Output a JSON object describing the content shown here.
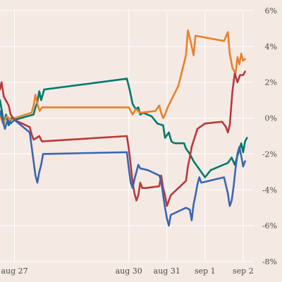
{
  "chart_data": {
    "type": "line",
    "title": "",
    "xlabel": "",
    "ylabel": "",
    "x_ticks": [
      {
        "day": 0,
        "label": "aug 27"
      },
      {
        "day": 3,
        "label": "aug 30"
      },
      {
        "day": 4,
        "label": "aug 31"
      },
      {
        "day": 5,
        "label": "sep 1"
      },
      {
        "day": 6,
        "label": "sep 2"
      }
    ],
    "xlim": [
      -0.38,
      6.28
    ],
    "ylim": [
      -8,
      6
    ],
    "y_ticks": [
      -8,
      -6,
      -4,
      -2,
      0,
      2,
      4,
      6
    ],
    "y_tick_labels": [
      "-8%",
      "-6%",
      "-4%",
      "-2%",
      "0%",
      "2%",
      "4%",
      "6%"
    ],
    "y_axis_side": "right",
    "grid": true,
    "legend": "none",
    "series": [
      {
        "color": "#00796b",
        "points": [
          [
            -0.38,
            1.0
          ],
          [
            -0.33,
            0.4
          ],
          [
            -0.28,
            -0.3
          ],
          [
            -0.22,
            0.2
          ],
          [
            -0.15,
            -0.4
          ],
          [
            -0.08,
            0.0
          ],
          [
            0.0,
            -0.1
          ],
          [
            0.5,
            0.2
          ],
          [
            0.55,
            0.6
          ],
          [
            0.6,
            0.9
          ],
          [
            0.65,
            1.5
          ],
          [
            0.7,
            1.0
          ],
          [
            0.78,
            1.6
          ],
          [
            2.95,
            2.2
          ],
          [
            3.02,
            1.6
          ],
          [
            3.1,
            0.8
          ],
          [
            3.18,
            0.5
          ],
          [
            3.25,
            0.6
          ],
          [
            3.3,
            0.2
          ],
          [
            3.38,
            0.3
          ],
          [
            3.6,
            0.1
          ],
          [
            3.75,
            -0.3
          ],
          [
            3.9,
            -0.4
          ],
          [
            3.95,
            -1.1
          ],
          [
            4.05,
            -0.8
          ],
          [
            4.12,
            -1.3
          ],
          [
            4.2,
            -1.4
          ],
          [
            4.45,
            -1.4
          ],
          [
            4.5,
            -1.7
          ],
          [
            4.6,
            -2.0
          ],
          [
            4.7,
            -2.4
          ],
          [
            4.8,
            -2.7
          ],
          [
            4.9,
            -3.0
          ],
          [
            5.0,
            -3.3
          ],
          [
            5.15,
            -2.9
          ],
          [
            5.6,
            -2.5
          ],
          [
            5.7,
            -2.2
          ],
          [
            5.78,
            -2.6
          ],
          [
            5.88,
            -1.9
          ],
          [
            5.95,
            -1.4
          ],
          [
            6.0,
            -1.9
          ],
          [
            6.05,
            -1.3
          ],
          [
            6.1,
            -1.1
          ]
        ]
      },
      {
        "color": "#e8822a",
        "points": [
          [
            -0.38,
            0.2
          ],
          [
            -0.3,
            -0.3
          ],
          [
            -0.2,
            0.1
          ],
          [
            -0.1,
            -0.1
          ],
          [
            0.0,
            0.0
          ],
          [
            0.45,
            0.3
          ],
          [
            0.5,
            0.7
          ],
          [
            0.55,
            1.3
          ],
          [
            0.6,
            0.8
          ],
          [
            0.66,
            0.4
          ],
          [
            0.72,
            0.6
          ],
          [
            3.0,
            0.6
          ],
          [
            3.1,
            0.2
          ],
          [
            3.18,
            0.5
          ],
          [
            3.3,
            0.3
          ],
          [
            3.7,
            0.4
          ],
          [
            3.8,
            0.7
          ],
          [
            3.85,
            0.3
          ],
          [
            3.9,
            0.0
          ],
          [
            3.95,
            0.2
          ],
          [
            4.02,
            0.6
          ],
          [
            4.3,
            1.8
          ],
          [
            4.5,
            3.5
          ],
          [
            4.55,
            4.9
          ],
          [
            4.62,
            4.3
          ],
          [
            4.7,
            3.5
          ],
          [
            4.75,
            4.6
          ],
          [
            5.5,
            4.3
          ],
          [
            5.6,
            4.8
          ],
          [
            5.65,
            3.6
          ],
          [
            5.72,
            2.8
          ],
          [
            5.8,
            2.5
          ],
          [
            5.85,
            3.4
          ],
          [
            5.9,
            3.0
          ],
          [
            5.95,
            3.6
          ],
          [
            6.0,
            3.2
          ],
          [
            6.05,
            3.3
          ]
        ]
      },
      {
        "color": "#b8393a",
        "points": [
          [
            -0.38,
            1.6
          ],
          [
            -0.34,
            2.0
          ],
          [
            -0.28,
            1.2
          ],
          [
            -0.2,
            0.9
          ],
          [
            -0.15,
            0.7
          ],
          [
            -0.1,
            0.2
          ],
          [
            0.0,
            -0.1
          ],
          [
            0.4,
            -0.5
          ],
          [
            0.45,
            -0.9
          ],
          [
            0.5,
            -1.2
          ],
          [
            0.58,
            -1.1
          ],
          [
            0.65,
            -1.0
          ],
          [
            0.72,
            -1.3
          ],
          [
            2.95,
            -1.0
          ],
          [
            3.0,
            -1.7
          ],
          [
            3.05,
            -2.6
          ],
          [
            3.1,
            -3.6
          ],
          [
            3.15,
            -4.2
          ],
          [
            3.2,
            -4.6
          ],
          [
            3.25,
            -4.3
          ],
          [
            3.3,
            -3.6
          ],
          [
            3.35,
            -3.9
          ],
          [
            3.45,
            -3.9
          ],
          [
            3.8,
            -3.8
          ],
          [
            3.85,
            -3.2
          ],
          [
            3.9,
            -3.9
          ],
          [
            3.95,
            -4.3
          ],
          [
            4.0,
            -4.9
          ],
          [
            4.1,
            -4.3
          ],
          [
            4.5,
            -3.5
          ],
          [
            4.55,
            -2.7
          ],
          [
            4.6,
            -2.2
          ],
          [
            4.65,
            -1.6
          ],
          [
            4.8,
            -0.6
          ],
          [
            5.0,
            -0.3
          ],
          [
            5.45,
            -0.2
          ],
          [
            5.55,
            -0.5
          ],
          [
            5.6,
            -0.8
          ],
          [
            5.65,
            -0.4
          ],
          [
            5.72,
            1.5
          ],
          [
            5.78,
            2.5
          ],
          [
            5.85,
            2.0
          ],
          [
            5.92,
            2.4
          ],
          [
            6.0,
            2.4
          ],
          [
            6.05,
            2.6
          ]
        ]
      },
      {
        "color": "#3a66b0",
        "points": [
          [
            -0.38,
            0.4
          ],
          [
            -0.3,
            -0.2
          ],
          [
            -0.25,
            -0.6
          ],
          [
            -0.18,
            -0.1
          ],
          [
            -0.1,
            -0.3
          ],
          [
            0.0,
            -0.1
          ],
          [
            0.4,
            -0.8
          ],
          [
            0.45,
            -1.6
          ],
          [
            0.5,
            -2.4
          ],
          [
            0.55,
            -3.2
          ],
          [
            0.6,
            -3.6
          ],
          [
            0.65,
            -3.0
          ],
          [
            0.7,
            -2.6
          ],
          [
            0.75,
            -2.0
          ],
          [
            2.95,
            -1.9
          ],
          [
            3.0,
            -2.8
          ],
          [
            3.05,
            -3.6
          ],
          [
            3.1,
            -3.9
          ],
          [
            3.15,
            -3.4
          ],
          [
            3.2,
            -3.0
          ],
          [
            3.25,
            -2.6
          ],
          [
            3.3,
            -2.8
          ],
          [
            3.5,
            -2.9
          ],
          [
            3.8,
            -3.2
          ],
          [
            3.85,
            -3.5
          ],
          [
            3.9,
            -4.3
          ],
          [
            3.95,
            -5.0
          ],
          [
            4.0,
            -5.6
          ],
          [
            4.05,
            -6.0
          ],
          [
            4.1,
            -5.4
          ],
          [
            4.5,
            -5.0
          ],
          [
            4.6,
            -5.1
          ],
          [
            4.65,
            -5.7
          ],
          [
            4.7,
            -4.8
          ],
          [
            4.75,
            -4.3
          ],
          [
            4.8,
            -3.7
          ],
          [
            4.85,
            -3.3
          ],
          [
            4.9,
            -3.6
          ],
          [
            5.5,
            -3.3
          ],
          [
            5.6,
            -4.2
          ],
          [
            5.65,
            -4.9
          ],
          [
            5.7,
            -4.6
          ],
          [
            5.75,
            -3.8
          ],
          [
            5.8,
            -2.8
          ],
          [
            5.85,
            -2.0
          ],
          [
            5.9,
            -1.6
          ],
          [
            5.95,
            -2.1
          ],
          [
            6.0,
            -2.7
          ],
          [
            6.05,
            -2.4
          ]
        ]
      }
    ]
  }
}
